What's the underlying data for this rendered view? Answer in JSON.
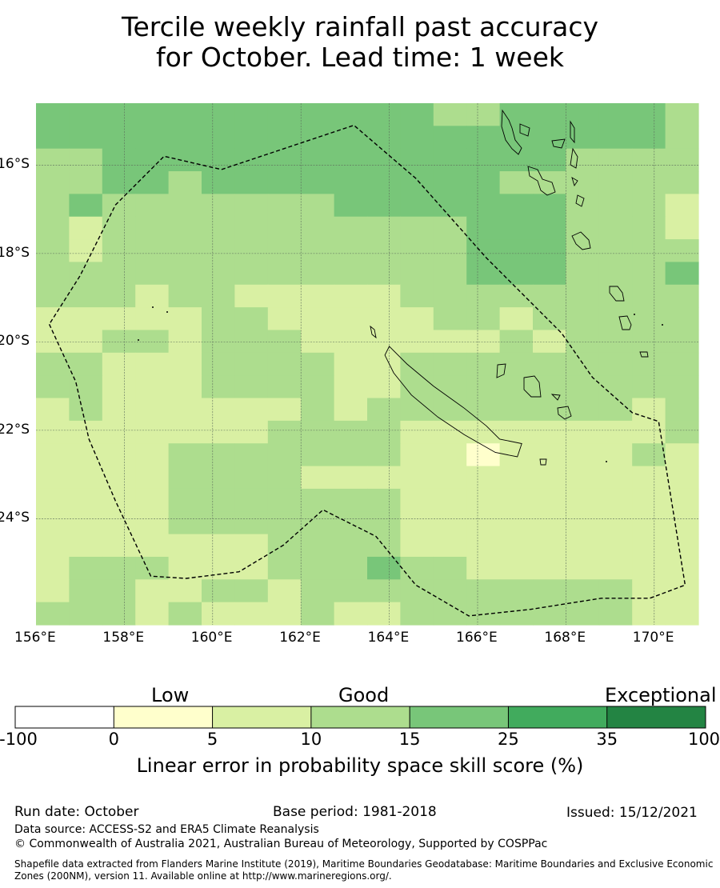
{
  "title": {
    "line1": "Tercile weekly rainfall past accuracy",
    "line2": "for October. Lead time: 1 week"
  },
  "map": {
    "lon_range": [
      156,
      171
    ],
    "lat_range": [
      -26.4,
      -14.6
    ],
    "lon_ticks": [
      "156°E",
      "158°E",
      "160°E",
      "162°E",
      "164°E",
      "166°E",
      "168°E",
      "170°E"
    ],
    "lat_ticks": [
      "16°S",
      "18°S",
      "20°S",
      "22°S",
      "24°S"
    ],
    "grid_cells": [
      [
        "L4",
        "L4",
        "L4",
        "L4",
        "L4",
        "L4",
        "L4",
        "L4",
        "L4",
        "L4",
        "L4",
        "L4",
        "L3",
        "L3",
        "L4",
        "L4",
        "L4",
        "L4",
        "L4",
        "L3"
      ],
      [
        "L4",
        "L4",
        "L4",
        "L4",
        "L4",
        "L4",
        "L4",
        "L4",
        "L4",
        "L4",
        "L4",
        "L4",
        "L4",
        "L4",
        "L4",
        "L4",
        "L4",
        "L4",
        "L4",
        "L3"
      ],
      [
        "L3",
        "L3",
        "L4",
        "L4",
        "L4",
        "L4",
        "L4",
        "L4",
        "L4",
        "L4",
        "L4",
        "L4",
        "L4",
        "L4",
        "L4",
        "L4",
        "L3",
        "L3",
        "L3",
        "L3"
      ],
      [
        "L3",
        "L3",
        "L4",
        "L4",
        "L3",
        "L4",
        "L4",
        "L4",
        "L4",
        "L4",
        "L4",
        "L4",
        "L4",
        "L4",
        "L3",
        "L3",
        "L3",
        "L3",
        "L3",
        "L3"
      ],
      [
        "L3",
        "L4",
        "L3",
        "L3",
        "L3",
        "L3",
        "L3",
        "L3",
        "L3",
        "L4",
        "L4",
        "L4",
        "L4",
        "L4",
        "L4",
        "L4",
        "L3",
        "L3",
        "L3",
        "L2"
      ],
      [
        "L3",
        "L2",
        "L3",
        "L3",
        "L3",
        "L3",
        "L3",
        "L3",
        "L3",
        "L3",
        "L3",
        "L3",
        "L3",
        "L4",
        "L4",
        "L4",
        "L3",
        "L3",
        "L3",
        "L2"
      ],
      [
        "L3",
        "L2",
        "L3",
        "L3",
        "L3",
        "L3",
        "L3",
        "L3",
        "L3",
        "L3",
        "L3",
        "L3",
        "L3",
        "L4",
        "L4",
        "L4",
        "L3",
        "L3",
        "L3",
        "L3"
      ],
      [
        "L3",
        "L3",
        "L3",
        "L3",
        "L3",
        "L3",
        "L3",
        "L3",
        "L3",
        "L3",
        "L3",
        "L3",
        "L3",
        "L4",
        "L4",
        "L4",
        "L3",
        "L3",
        "L3",
        "L4"
      ],
      [
        "L3",
        "L3",
        "L3",
        "L2",
        "L3",
        "L3",
        "L2",
        "L2",
        "L2",
        "L2",
        "L2",
        "L3",
        "L3",
        "L3",
        "L3",
        "L3",
        "L3",
        "L3",
        "L3",
        "L3"
      ],
      [
        "L2",
        "L2",
        "L2",
        "L2",
        "L2",
        "L3",
        "L3",
        "L2",
        "L2",
        "L2",
        "L2",
        "L2",
        "L3",
        "L3",
        "L2",
        "L3",
        "L3",
        "L3",
        "L3",
        "L3"
      ],
      [
        "L2",
        "L2",
        "L3",
        "L3",
        "L2",
        "L3",
        "L3",
        "L3",
        "L2",
        "L2",
        "L2",
        "L2",
        "L2",
        "L2",
        "L3",
        "L2",
        "L3",
        "L3",
        "L3",
        "L3"
      ],
      [
        "L3",
        "L3",
        "L2",
        "L2",
        "L2",
        "L3",
        "L3",
        "L3",
        "L3",
        "L2",
        "L2",
        "L3",
        "L3",
        "L3",
        "L3",
        "L3",
        "L3",
        "L3",
        "L3",
        "L3"
      ],
      [
        "L3",
        "L3",
        "L2",
        "L2",
        "L2",
        "L3",
        "L3",
        "L3",
        "L3",
        "L2",
        "L2",
        "L3",
        "L3",
        "L3",
        "L3",
        "L3",
        "L3",
        "L3",
        "L3",
        "L3"
      ],
      [
        "L2",
        "L3",
        "L2",
        "L2",
        "L2",
        "L2",
        "L2",
        "L2",
        "L3",
        "L2",
        "L3",
        "L3",
        "L3",
        "L3",
        "L3",
        "L3",
        "L3",
        "L3",
        "L2",
        "L3"
      ],
      [
        "L2",
        "L2",
        "L2",
        "L2",
        "L2",
        "L2",
        "L2",
        "L3",
        "L3",
        "L3",
        "L3",
        "L2",
        "L2",
        "L2",
        "L2",
        "L2",
        "L2",
        "L2",
        "L2",
        "L3"
      ],
      [
        "L2",
        "L2",
        "L2",
        "L2",
        "L3",
        "L3",
        "L3",
        "L3",
        "L3",
        "L3",
        "L3",
        "L2",
        "L2",
        "L1",
        "L2",
        "L2",
        "L2",
        "L2",
        "L3",
        "L2"
      ],
      [
        "L2",
        "L2",
        "L2",
        "L2",
        "L3",
        "L3",
        "L3",
        "L3",
        "L2",
        "L2",
        "L2",
        "L2",
        "L2",
        "L2",
        "L2",
        "L2",
        "L2",
        "L2",
        "L2",
        "L2"
      ],
      [
        "L2",
        "L2",
        "L2",
        "L2",
        "L3",
        "L3",
        "L3",
        "L3",
        "L3",
        "L3",
        "L3",
        "L2",
        "L2",
        "L2",
        "L2",
        "L2",
        "L2",
        "L2",
        "L2",
        "L2"
      ],
      [
        "L2",
        "L2",
        "L2",
        "L2",
        "L3",
        "L3",
        "L3",
        "L3",
        "L3",
        "L3",
        "L3",
        "L2",
        "L2",
        "L2",
        "L2",
        "L2",
        "L2",
        "L2",
        "L2",
        "L2"
      ],
      [
        "L2",
        "L2",
        "L2",
        "L2",
        "L2",
        "L2",
        "L2",
        "L3",
        "L3",
        "L3",
        "L3",
        "L2",
        "L2",
        "L2",
        "L2",
        "L2",
        "L2",
        "L2",
        "L2",
        "L2"
      ],
      [
        "L2",
        "L3",
        "L3",
        "L3",
        "L2",
        "L2",
        "L2",
        "L3",
        "L3",
        "L3",
        "L4",
        "L3",
        "L3",
        "L2",
        "L2",
        "L2",
        "L2",
        "L2",
        "L2",
        "L2"
      ],
      [
        "L2",
        "L3",
        "L3",
        "L2",
        "L2",
        "L3",
        "L3",
        "L2",
        "L3",
        "L3",
        "L3",
        "L3",
        "L3",
        "L3",
        "L3",
        "L3",
        "L3",
        "L3",
        "L2",
        "L2"
      ],
      [
        "L3",
        "L3",
        "L3",
        "L2",
        "L3",
        "L2",
        "L2",
        "L2",
        "L3",
        "L2",
        "L2",
        "L3",
        "L3",
        "L3",
        "L3",
        "L3",
        "L3",
        "L3",
        "L2",
        "L2"
      ]
    ],
    "boundary_lonlat": [
      [
        156.3,
        -19.6
      ],
      [
        156.9,
        -20.9
      ],
      [
        157.2,
        -22.2
      ],
      [
        157.8,
        -23.6
      ],
      [
        158.6,
        -25.3
      ],
      [
        159.4,
        -25.35
      ],
      [
        160.6,
        -25.2
      ],
      [
        161.6,
        -24.6
      ],
      [
        162.5,
        -23.8
      ],
      [
        163.7,
        -24.4
      ],
      [
        164.6,
        -25.5
      ],
      [
        165.8,
        -26.2
      ],
      [
        167.2,
        -26.05
      ],
      [
        168.8,
        -25.8
      ],
      [
        169.9,
        -25.8
      ],
      [
        170.7,
        -25.5
      ],
      [
        170.1,
        -21.8
      ],
      [
        169.5,
        -21.6
      ],
      [
        168.6,
        -20.8
      ],
      [
        167.9,
        -19.8
      ],
      [
        166.2,
        -18.1
      ],
      [
        164.6,
        -16.3
      ],
      [
        163.2,
        -15.1
      ],
      [
        160.2,
        -16.1
      ],
      [
        158.9,
        -15.8
      ],
      [
        157.8,
        -16.9
      ],
      [
        157.0,
        -18.5
      ],
      [
        156.3,
        -19.6
      ]
    ],
    "new_caledonia_lonlat": [
      [
        164.0,
        -20.1
      ],
      [
        164.4,
        -20.5
      ],
      [
        165.0,
        -21.0
      ],
      [
        165.7,
        -21.5
      ],
      [
        166.2,
        -21.9
      ],
      [
        166.5,
        -22.2
      ],
      [
        167.0,
        -22.3
      ],
      [
        166.9,
        -22.6
      ],
      [
        166.4,
        -22.5
      ],
      [
        165.7,
        -22.1
      ],
      [
        165.1,
        -21.7
      ],
      [
        164.5,
        -21.2
      ],
      [
        164.1,
        -20.7
      ],
      [
        163.9,
        -20.3
      ]
    ]
  },
  "colorbar": {
    "categories": [
      "Low",
      "Good",
      "Exceptional"
    ],
    "levels": [
      {
        "key": "L0",
        "color": "#ffffff"
      },
      {
        "key": "L1",
        "color": "#ffffcc"
      },
      {
        "key": "L2",
        "color": "#d9f0a3"
      },
      {
        "key": "L3",
        "color": "#addd8e"
      },
      {
        "key": "L4",
        "color": "#78c679"
      },
      {
        "key": "L5",
        "color": "#41ab5d"
      },
      {
        "key": "L6",
        "color": "#238443"
      }
    ],
    "ticks": [
      "-100",
      "0",
      "5",
      "10",
      "15",
      "25",
      "35",
      "100"
    ],
    "axis_label": "Linear error in probability space skill score (%)"
  },
  "footer": {
    "run_date": "Run date: October",
    "base_period": "Base period: 1981-2018",
    "issued": "Issued: 15/12/2021",
    "data_source": "Data source: ACCESS-S2 and ERA5 Climate Reanalysis",
    "copyright": "© Commonwealth of Australia 2021, Australian Bureau of Meteorology, Supported by COSPPac",
    "shapefile_note": "Shapefile data extracted from Flanders Marine Institute (2019), Maritime Boundaries Geodatabase: Maritime Boundaries and Exclusive Economic Zones (200NM), version 11. Available online at http://www.marineregions.org/."
  }
}
